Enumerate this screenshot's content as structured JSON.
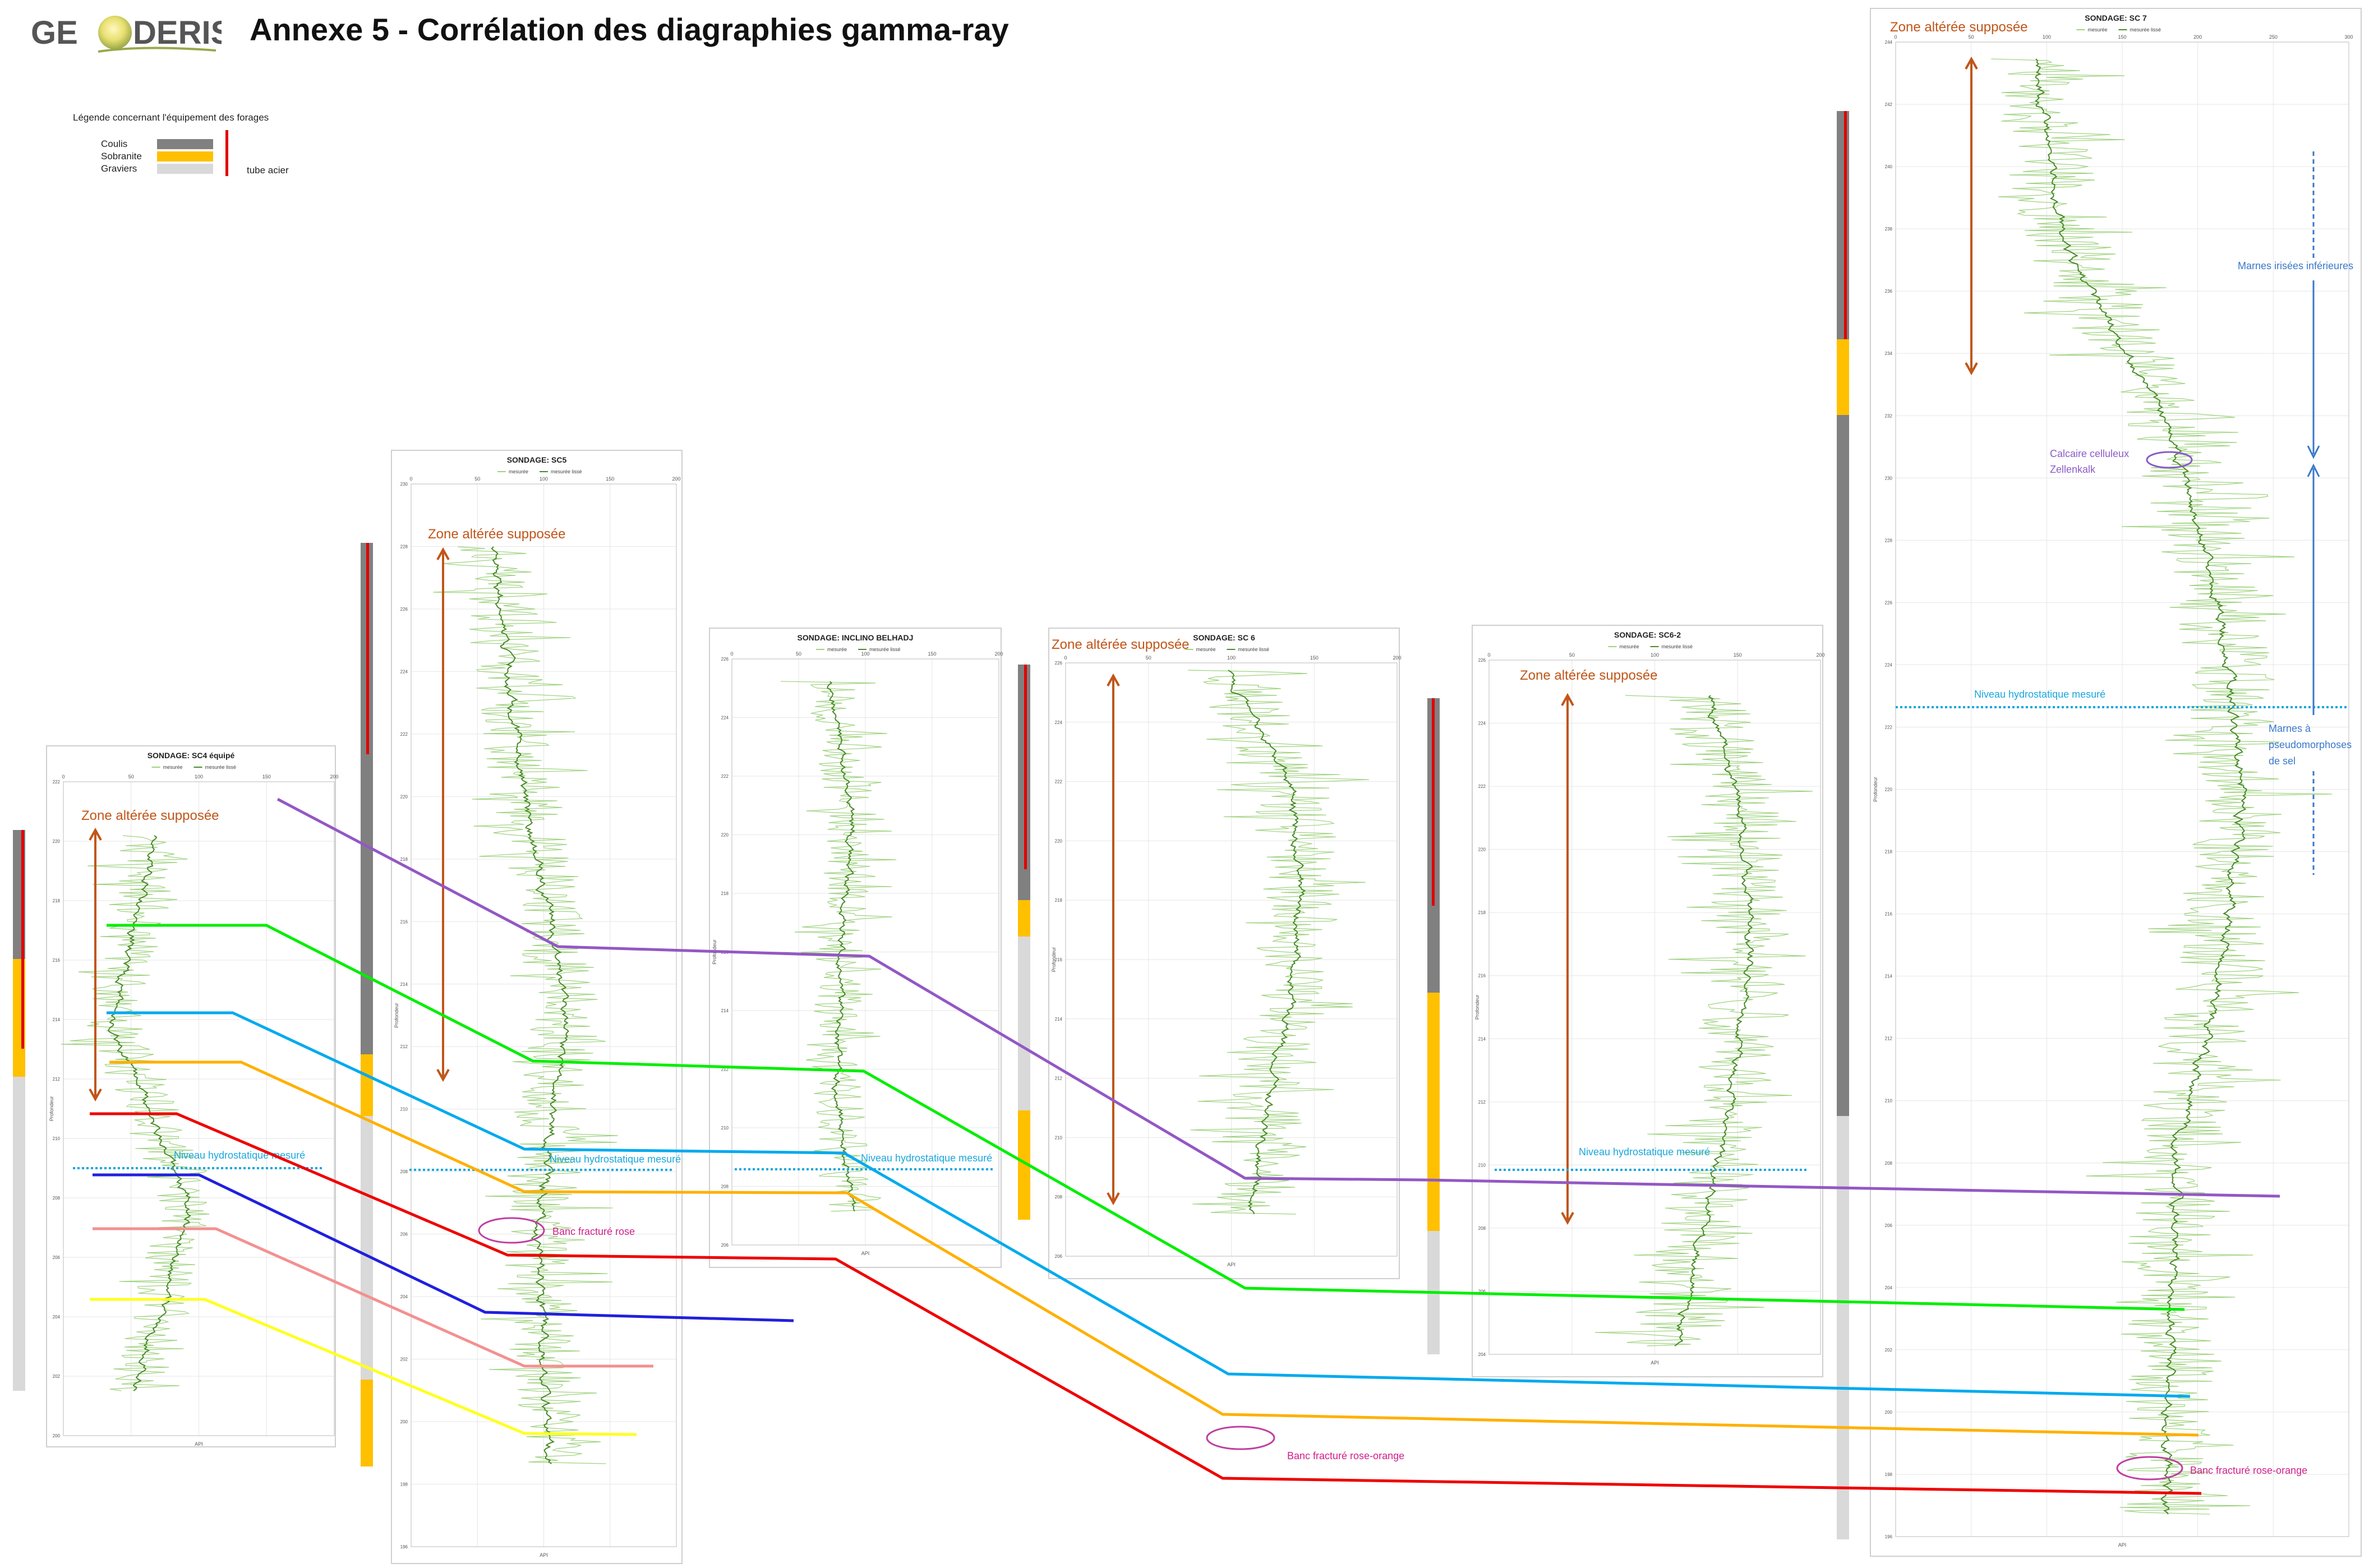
{
  "header": {
    "logo_text": "GEODERIS",
    "title": "Annexe 5 - Corrélation des diagraphies gamma-ray"
  },
  "legend": {
    "title": "Légende concernant l'équipement des forages",
    "items": [
      {
        "label": "Coulis",
        "color": "#808080"
      },
      {
        "label": "Sobranite",
        "color": "#ffc000"
      },
      {
        "label": "Graviers",
        "color": "#d9d9d9"
      }
    ],
    "tube_label": "tube acier",
    "tube_color": "#e00000"
  },
  "panels": [
    {
      "id": "sc4",
      "title": "SONDAGE: SC4 équipé",
      "series": [
        "mesurée",
        "mesurée lissé"
      ],
      "xticks": [
        "0",
        "50",
        "100",
        "150",
        "200"
      ],
      "yticks": [
        "222",
        "220",
        "218",
        "216",
        "214",
        "212",
        "210",
        "208",
        "206",
        "204",
        "202",
        "200"
      ],
      "ylabel": "Profondeur",
      "xlabel": "API",
      "zone_label": "Zone altérée supposée",
      "water_label": "Niveau hydrostatique mesuré"
    },
    {
      "id": "sc5",
      "title": "SONDAGE: SC5",
      "series": [
        "mesurée",
        "mesurée lissé"
      ],
      "xticks": [
        "0",
        "50",
        "100",
        "150",
        "200"
      ],
      "yticks": [
        "230",
        "228",
        "226",
        "224",
        "222",
        "220",
        "218",
        "216",
        "214",
        "212",
        "210",
        "208",
        "206",
        "204",
        "202",
        "200",
        "198",
        "196"
      ],
      "ylabel": "Profondeur",
      "xlabel": "API",
      "zone_label": "Zone altérée supposée",
      "water_label": "Niveau hydrostatique mesuré",
      "annotation": "Banc fracturé rose"
    },
    {
      "id": "inclino",
      "title": "SONDAGE: INCLINO BELHADJ",
      "series": [
        "mesurée",
        "mesurée lissé"
      ],
      "xticks": [
        "0",
        "50",
        "100",
        "150",
        "200"
      ],
      "yticks": [
        "226",
        "224",
        "222",
        "220",
        "218",
        "216",
        "214",
        "212",
        "210",
        "208",
        "206"
      ],
      "ylabel": "Profondeur",
      "xlabel": "API",
      "water_label": "Niveau hydrostatique mesuré"
    },
    {
      "id": "sc6",
      "title": "SONDAGE: SC 6",
      "series": [
        "mesurée",
        "mesurée lissé"
      ],
      "xticks": [
        "0",
        "50",
        "100",
        "150",
        "200"
      ],
      "yticks": [
        "226",
        "224",
        "222",
        "220",
        "218",
        "216",
        "214",
        "212",
        "210",
        "208",
        "206"
      ],
      "ylabel": "Profondeur",
      "xlabel": "API",
      "zone_label": "Zone altérée supposée"
    },
    {
      "id": "sc6_2",
      "title": "SONDAGE: SC6-2",
      "series": [
        "mesurée",
        "mesurée lissé"
      ],
      "xticks": [
        "0",
        "50",
        "100",
        "150",
        "200"
      ],
      "yticks": [
        "226",
        "224",
        "222",
        "220",
        "218",
        "216",
        "214",
        "212",
        "210",
        "208",
        "206",
        "204"
      ],
      "ylabel": "Profondeur",
      "xlabel": "API",
      "zone_label": "Zone altérée supposée",
      "water_label": "Niveau hydrostatique mesuré"
    },
    {
      "id": "sc7",
      "title": "SONDAGE: SC 7",
      "series": [
        "mesurée",
        "mesurée lissé"
      ],
      "xticks": [
        "0",
        "50",
        "100",
        "150",
        "200",
        "250",
        "300"
      ],
      "yticks": [
        "244",
        "242",
        "240",
        "238",
        "236",
        "234",
        "232",
        "230",
        "228",
        "226",
        "224",
        "222",
        "220",
        "218",
        "216",
        "214",
        "212",
        "210",
        "208",
        "206",
        "204",
        "202",
        "200",
        "198",
        "196"
      ],
      "ylabel": "Profondeur",
      "xlabel": "API",
      "zone_label": "Zone altérée supposée",
      "water_label": "Niveau hydrostatique mesuré",
      "notes": [
        "Marnes irisées inférieures",
        "Calcaire celluleux",
        "Zellenkalk",
        "Marnes à",
        "pseudomorphoses",
        "de sel"
      ],
      "annotation": "Banc fracturé rose-orange"
    }
  ],
  "annotation_between": "Banc fracturé rose-orange",
  "correlation_colors": {
    "purple": "#9358c4",
    "green": "#00ee00",
    "cyan": "#00aaee",
    "orange": "#ffb000",
    "red": "#ee0000",
    "blue": "#2020dd",
    "pink": "#f49090",
    "yellow": "#ffff20"
  },
  "zone_color": "#c0561a",
  "water_color": "#1aa7dd",
  "log_color": "#4a8a2a",
  "log_light": "#9ed27e"
}
